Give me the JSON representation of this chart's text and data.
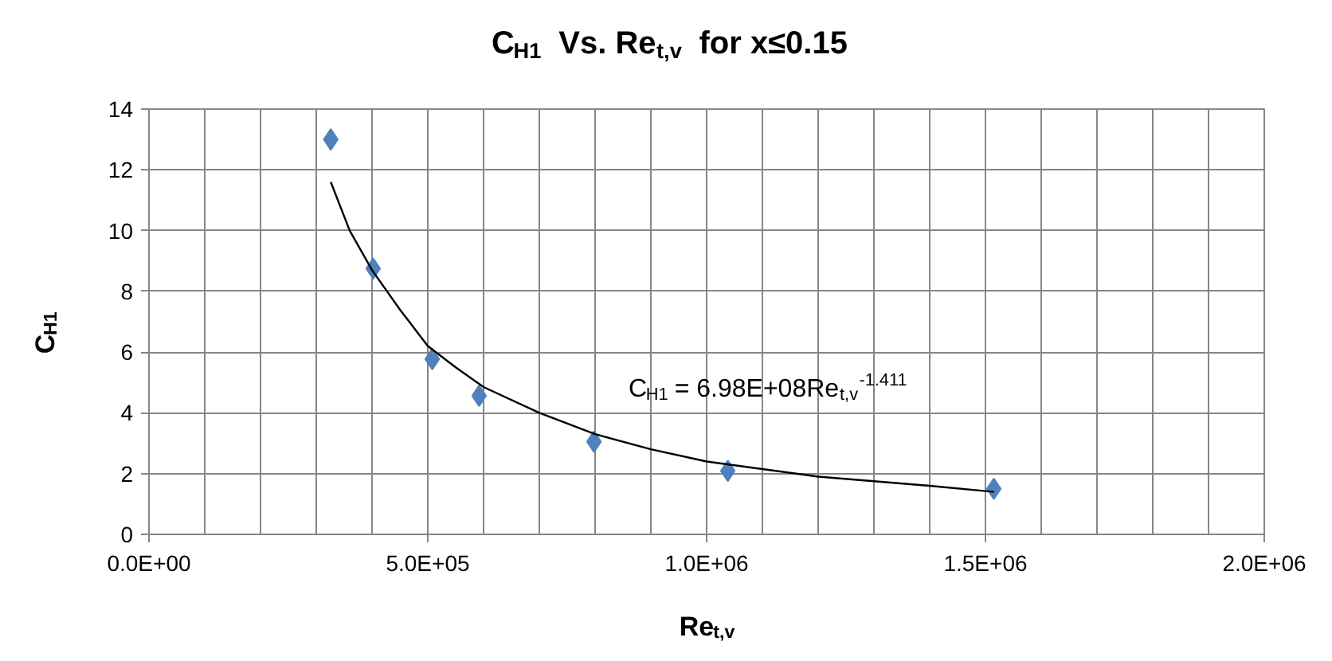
{
  "chart_data": {
    "type": "scatter",
    "title": "C$_{H1}$  Vs. Re$_{t,v}$  for x≤0.15",
    "xlabel": "Re$_{t,v}$",
    "ylabel": "C$_{H1}$",
    "annotations": [
      "C$_{H1}$ = 6.98E+08Re$_{t,v}$$^{-1.411}$"
    ],
    "xlim": [
      0,
      2000000
    ],
    "ylim": [
      0,
      14
    ],
    "xticks": [
      {
        "value": 0,
        "label": "0.0E+00"
      },
      {
        "value": 100000,
        "label": null
      },
      {
        "value": 200000,
        "label": null
      },
      {
        "value": 300000,
        "label": null
      },
      {
        "value": 400000,
        "label": null
      },
      {
        "value": 500000,
        "label": "5.0E+05"
      },
      {
        "value": 600000,
        "label": null
      },
      {
        "value": 700000,
        "label": null
      },
      {
        "value": 800000,
        "label": null
      },
      {
        "value": 900000,
        "label": null
      },
      {
        "value": 1000000,
        "label": "1.0E+06"
      },
      {
        "value": 1100000,
        "label": null
      },
      {
        "value": 1200000,
        "label": null
      },
      {
        "value": 1300000,
        "label": null
      },
      {
        "value": 1400000,
        "label": null
      },
      {
        "value": 1500000,
        "label": "1.5E+06"
      },
      {
        "value": 1600000,
        "label": null
      },
      {
        "value": 1700000,
        "label": null
      },
      {
        "value": 1800000,
        "label": null
      },
      {
        "value": 1900000,
        "label": null
      },
      {
        "value": 2000000,
        "label": "2.0E+06"
      }
    ],
    "yticks": [
      0,
      2,
      4,
      6,
      8,
      10,
      12,
      14
    ],
    "grid": true,
    "marker": "diamond",
    "series": [
      {
        "color": "#4f81bd",
        "x": [
          326000,
          402000,
          508000,
          592000,
          798000,
          1038000,
          1515000
        ],
        "values": [
          13.0,
          8.75,
          5.77,
          4.56,
          3.05,
          2.09,
          1.5
        ]
      },
      {
        "type": "line",
        "marker": "none",
        "color": "#000000",
        "x": [
          326000,
          360000,
          400000,
          450000,
          500000,
          550000,
          600000,
          700000,
          800000,
          900000,
          1000000,
          1200000,
          1400000,
          1515000
        ],
        "values": [
          11.6,
          10.0,
          8.7,
          7.4,
          6.2,
          5.5,
          4.85,
          4.0,
          3.3,
          2.8,
          2.4,
          1.9,
          1.6,
          1.4
        ]
      }
    ]
  }
}
